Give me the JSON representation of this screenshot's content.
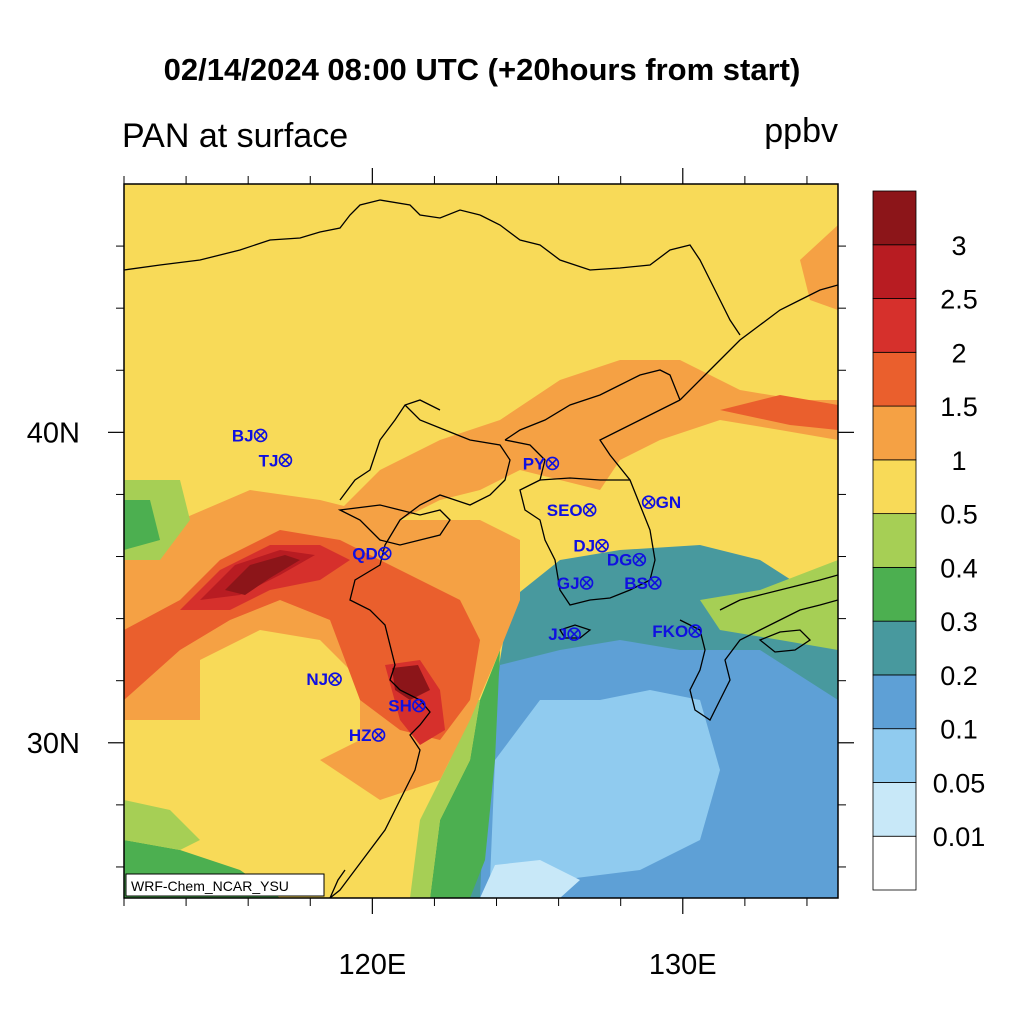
{
  "header": {
    "title": "02/14/2024 08:00 UTC (+20hours from start)",
    "left_label": "PAN at surface",
    "units": "ppbv"
  },
  "map": {
    "lon_range": [
      112,
      135
    ],
    "lat_range": [
      25,
      48
    ],
    "x_ticks": [
      {
        "value": 120,
        "label": "120E"
      },
      {
        "value": 130,
        "label": "130E"
      }
    ],
    "y_ticks": [
      {
        "value": 40,
        "label": "40N"
      },
      {
        "value": 30,
        "label": "30N"
      }
    ],
    "minor_lon": [
      112,
      114,
      116,
      118,
      122,
      124,
      126,
      128,
      132,
      134
    ],
    "minor_lat": [
      26,
      28,
      32,
      34,
      36,
      38,
      42,
      44,
      46
    ],
    "credit": "WRF-Chem_NCAR_YSU",
    "station_color": "#1010e0",
    "stations": [
      {
        "code": "BJ",
        "lon": 116.4,
        "lat": 39.9
      },
      {
        "code": "TJ",
        "lon": 117.2,
        "lat": 39.1
      },
      {
        "code": "PY",
        "lon": 125.8,
        "lat": 39.0
      },
      {
        "code": "SEO",
        "lon": 127.0,
        "lat": 37.5
      },
      {
        "code": "GN",
        "lon": 128.9,
        "lat": 37.75
      },
      {
        "code": "QD",
        "lon": 120.4,
        "lat": 36.1
      },
      {
        "code": "DJ",
        "lon": 127.4,
        "lat": 36.35
      },
      {
        "code": "DG",
        "lon": 128.6,
        "lat": 35.9
      },
      {
        "code": "GJ",
        "lon": 126.9,
        "lat": 35.15
      },
      {
        "code": "BS",
        "lon": 129.1,
        "lat": 35.15
      },
      {
        "code": "JJ",
        "lon": 126.5,
        "lat": 33.5
      },
      {
        "code": "FKO",
        "lon": 130.4,
        "lat": 33.6
      },
      {
        "code": "NJ",
        "lon": 118.8,
        "lat": 32.05
      },
      {
        "code": "SH",
        "lon": 121.5,
        "lat": 31.2
      },
      {
        "code": "HZ",
        "lon": 120.2,
        "lat": 30.25
      }
    ]
  },
  "colorbar": {
    "levels": [
      "0.01",
      "0.05",
      "0.1",
      "0.2",
      "0.3",
      "0.4",
      "0.5",
      "1",
      "1.5",
      "2",
      "2.5",
      "3"
    ],
    "colors": [
      "#ffffff",
      "#c8e8f8",
      "#90cbef",
      "#5ea0d6",
      "#48999e",
      "#4caf50",
      "#a6cf55",
      "#f8da58",
      "#f5a144",
      "#ea5f2d",
      "#d6302c",
      "#b81c22",
      "#8c1519"
    ]
  }
}
